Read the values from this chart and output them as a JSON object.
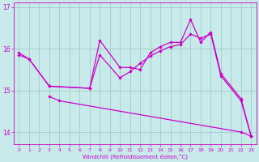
{
  "xlabel": "Windchill (Refroidissement éolien,°C)",
  "background_color": "#c8eaea",
  "line_color": "#cc00cc",
  "grid_color": "#a0cccc",
  "ylim": [
    13.7,
    17.1
  ],
  "xlim": [
    -0.5,
    23.5
  ],
  "yticks": [
    14,
    15,
    16,
    17
  ],
  "xticks": [
    0,
    1,
    2,
    3,
    4,
    5,
    6,
    7,
    8,
    9,
    10,
    11,
    12,
    13,
    14,
    15,
    16,
    17,
    18,
    19,
    20,
    21,
    22,
    23
  ],
  "c1x": [
    0,
    1,
    3,
    7,
    8,
    10,
    11,
    12,
    13,
    14,
    15,
    16,
    17,
    18,
    19,
    20,
    22,
    23
  ],
  "c1y": [
    15.9,
    15.75,
    15.1,
    15.05,
    16.2,
    15.55,
    15.55,
    15.5,
    15.9,
    16.05,
    16.15,
    16.15,
    16.7,
    16.15,
    16.4,
    15.4,
    14.8,
    13.9
  ],
  "c2x": [
    0,
    1,
    3,
    7,
    8,
    10,
    11,
    12,
    13,
    14,
    15,
    16,
    17,
    18,
    19,
    20,
    22,
    23
  ],
  "c2y": [
    15.85,
    15.75,
    15.1,
    15.05,
    15.85,
    15.3,
    15.45,
    15.65,
    15.82,
    15.95,
    16.05,
    16.1,
    16.35,
    16.25,
    16.35,
    15.35,
    14.75,
    13.9
  ],
  "c3x": [
    3,
    4,
    22,
    23
  ],
  "c3y": [
    14.85,
    14.75,
    14.0,
    13.9
  ]
}
